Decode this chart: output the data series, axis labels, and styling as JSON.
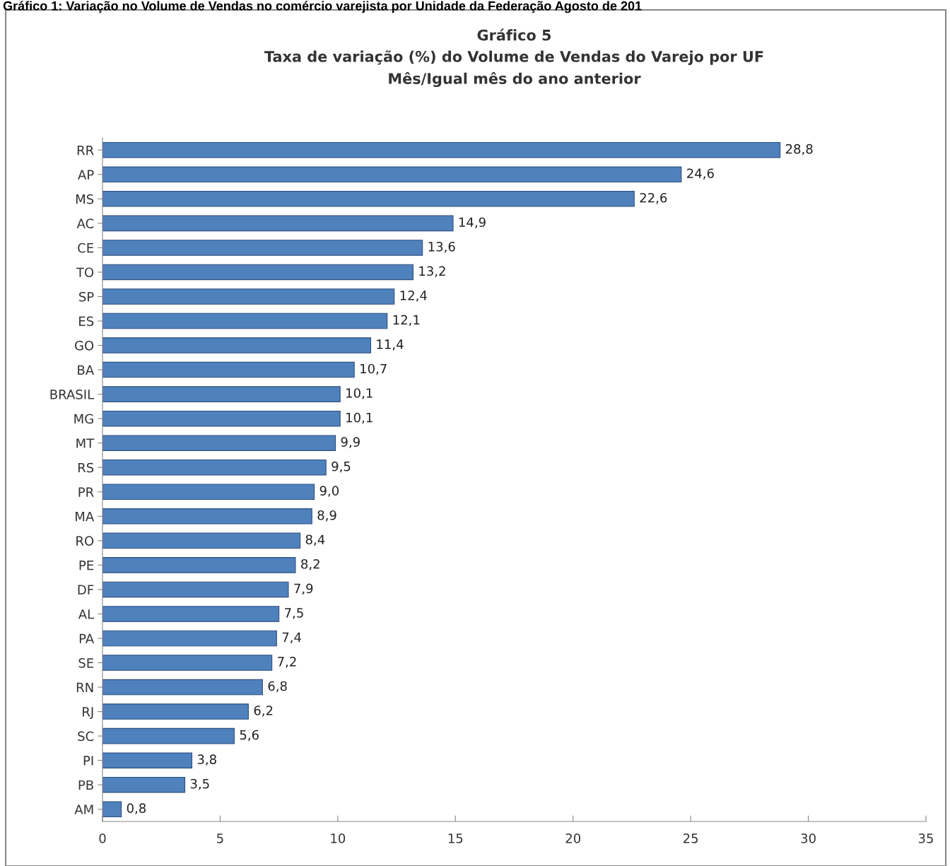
{
  "chart_data": {
    "type": "bar",
    "orientation": "horizontal",
    "title": "Gráfico 5\nTaxa de variação (%) do Volume de Vendas do Varejo por UF\nMês/Igual mês do ano anterior",
    "annotations": [
      "Gráfico 1: Variação no Volume de Vendas no comércio varejista por Unidade da Federação Agosto de 201"
    ],
    "categories": [
      "RR",
      "AP",
      "MS",
      "AC",
      "CE",
      "TO",
      "SP",
      "ES",
      "GO",
      "BA",
      "BRASIL",
      "MG",
      "MT",
      "RS",
      "PR",
      "MA",
      "RO",
      "PE",
      "DF",
      "AL",
      "PA",
      "SE",
      "RN",
      "RJ",
      "SC",
      "PI",
      "PB",
      "AM"
    ],
    "values": [
      28.8,
      24.6,
      22.6,
      14.9,
      13.6,
      13.2,
      12.4,
      12.1,
      11.4,
      10.7,
      10.1,
      10.1,
      9.9,
      9.5,
      9.0,
      8.9,
      8.4,
      8.2,
      7.9,
      7.5,
      7.4,
      7.2,
      6.8,
      6.2,
      5.6,
      3.8,
      3.5,
      0.8
    ],
    "value_labels": [
      "28,8",
      "24,6",
      "22,6",
      "14,9",
      "13,6",
      "13,2",
      "12,4",
      "12,1",
      "11,4",
      "10,7",
      "10,1",
      "10,1",
      "9,9",
      "9,5",
      "9,0",
      "8,9",
      "8,4",
      "8,2",
      "7,9",
      "7,5",
      "7,4",
      "7,2",
      "6,8",
      "6,2",
      "5,6",
      "3,8",
      "3,5",
      "0,8"
    ],
    "color": "#4f81bd",
    "xlim": [
      0,
      35
    ],
    "xticks": [
      0,
      5,
      10,
      15,
      20,
      25,
      30,
      35
    ],
    "grid": false,
    "legend": false
  }
}
